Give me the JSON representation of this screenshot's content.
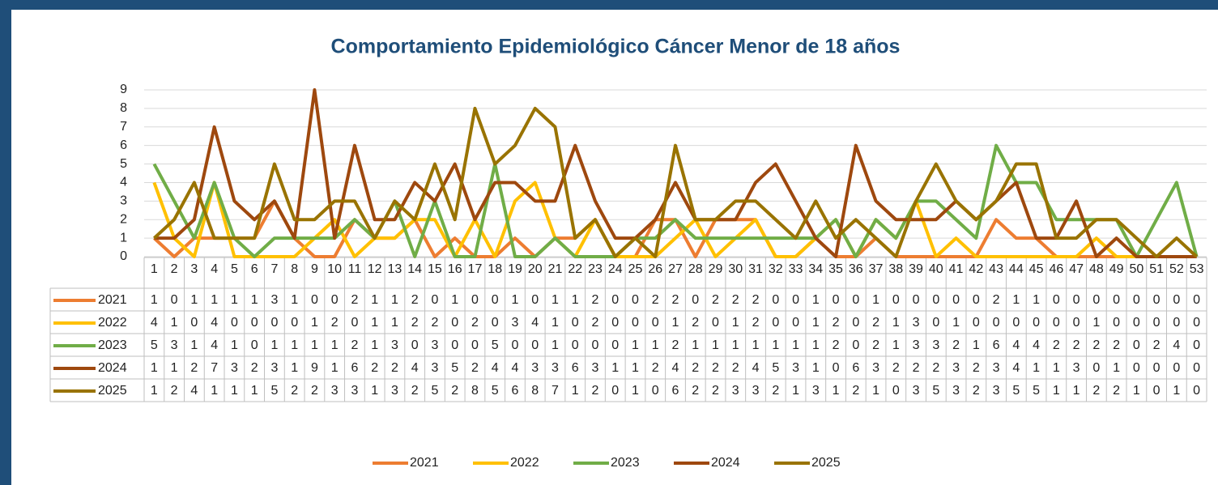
{
  "chart_data": {
    "type": "line",
    "title": "Comportamiento Epidemiológico Cáncer Menor de 18 años",
    "categories": [
      1,
      2,
      3,
      4,
      5,
      6,
      7,
      8,
      9,
      10,
      11,
      12,
      13,
      14,
      15,
      16,
      17,
      18,
      19,
      20,
      21,
      22,
      23,
      24,
      25,
      26,
      27,
      28,
      29,
      30,
      31,
      32,
      33,
      34,
      35,
      36,
      37,
      38,
      39,
      40,
      41,
      42,
      43,
      44,
      45,
      46,
      47,
      48,
      49,
      50,
      51,
      52,
      53
    ],
    "ylim": [
      0,
      9
    ],
    "yticks": [
      0,
      1,
      2,
      3,
      4,
      5,
      6,
      7,
      8,
      9
    ],
    "grid": true,
    "legend": "bottom",
    "series": [
      {
        "name": "2021",
        "color": "#ed7d31",
        "values": [
          1,
          0,
          1,
          1,
          1,
          1,
          3,
          1,
          0,
          0,
          2,
          1,
          1,
          2,
          0,
          1,
          0,
          0,
          1,
          0,
          1,
          1,
          2,
          0,
          0,
          2,
          2,
          0,
          2,
          2,
          2,
          0,
          0,
          1,
          0,
          0,
          1,
          0,
          0,
          0,
          0,
          0,
          2,
          1,
          1,
          0,
          0,
          0,
          0,
          0,
          0,
          0,
          0
        ]
      },
      {
        "name": "2022",
        "color": "#ffc000",
        "values": [
          4,
          1,
          0,
          4,
          0,
          0,
          0,
          0,
          1,
          2,
          0,
          1,
          1,
          2,
          2,
          0,
          2,
          0,
          3,
          4,
          1,
          0,
          2,
          0,
          0,
          0,
          1,
          2,
          0,
          1,
          2,
          0,
          0,
          1,
          2,
          0,
          2,
          1,
          3,
          0,
          1,
          0,
          0,
          0,
          0,
          0,
          0,
          1,
          0,
          0,
          0,
          0,
          0
        ]
      },
      {
        "name": "2023",
        "color": "#70ad47",
        "values": [
          5,
          3,
          1,
          4,
          1,
          0,
          1,
          1,
          1,
          1,
          2,
          1,
          3,
          0,
          3,
          0,
          0,
          5,
          0,
          0,
          1,
          0,
          0,
          0,
          1,
          1,
          2,
          1,
          1,
          1,
          1,
          1,
          1,
          1,
          2,
          0,
          2,
          1,
          3,
          3,
          2,
          1,
          6,
          4,
          4,
          2,
          2,
          2,
          2,
          0,
          2,
          4,
          0
        ]
      },
      {
        "name": "2024",
        "color": "#9e480e",
        "values": [
          1,
          1,
          2,
          7,
          3,
          2,
          3,
          1,
          9,
          1,
          6,
          2,
          2,
          4,
          3,
          5,
          2,
          4,
          4,
          3,
          3,
          6,
          3,
          1,
          1,
          2,
          4,
          2,
          2,
          2,
          4,
          5,
          3,
          1,
          0,
          6,
          3,
          2,
          2,
          2,
          3,
          2,
          3,
          4,
          1,
          1,
          3,
          0,
          1,
          0,
          0,
          0,
          0
        ]
      },
      {
        "name": "2025",
        "color": "#997300",
        "values": [
          1,
          2,
          4,
          1,
          1,
          1,
          5,
          2,
          2,
          3,
          3,
          1,
          3,
          2,
          5,
          2,
          8,
          5,
          6,
          8,
          7,
          1,
          2,
          0,
          1,
          0,
          6,
          2,
          2,
          3,
          3,
          2,
          1,
          3,
          1,
          2,
          1,
          0,
          3,
          5,
          3,
          2,
          3,
          5,
          5,
          1,
          1,
          2,
          2,
          1,
          0,
          1,
          0
        ]
      }
    ]
  }
}
